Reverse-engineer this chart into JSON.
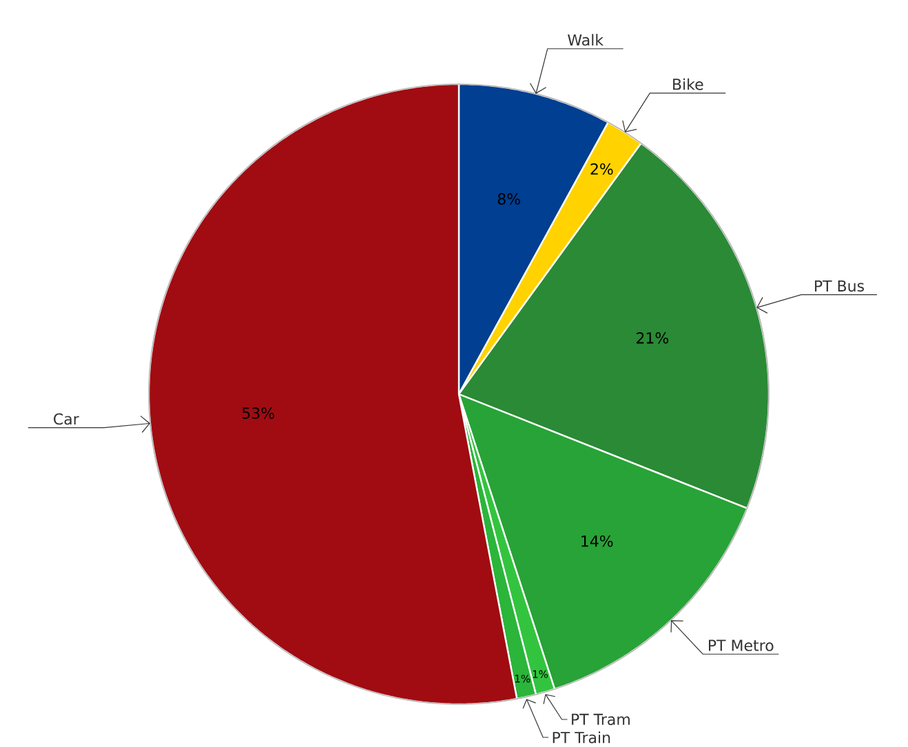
{
  "chart_data": {
    "type": "pie",
    "categories": [
      "Walk",
      "Bike",
      "PT Bus",
      "PT Metro",
      "PT Tram",
      "PT Train",
      "Car"
    ],
    "values": [
      8,
      2,
      21,
      14,
      1,
      1,
      53
    ],
    "colors": [
      "#003f91",
      "#ffd200",
      "#2a8a35",
      "#28a337",
      "#33c43f",
      "#2bb53a",
      "#a00c12"
    ],
    "value_labels": [
      "8%",
      "2%",
      "21%",
      "14%",
      "1%",
      "1%",
      "53%"
    ]
  }
}
